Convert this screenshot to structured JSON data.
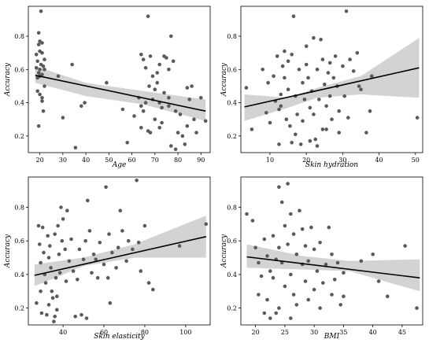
{
  "chart_data": [
    {
      "type": "scatter",
      "xlabel": "Age",
      "ylabel": "Accuracy",
      "xlim": [
        15,
        94
      ],
      "ylim": [
        0.1,
        0.98
      ],
      "xticks": [
        20,
        30,
        40,
        50,
        60,
        70,
        80,
        90
      ],
      "yticks": [
        0.2,
        0.4,
        0.6,
        0.8
      ],
      "grid": false,
      "fit": {
        "x": [
          18,
          92
        ],
        "y": [
          0.565,
          0.35
        ]
      },
      "band": {
        "x": [
          18,
          40,
          65,
          92
        ],
        "lower": [
          0.52,
          0.44,
          0.39,
          0.29
        ],
        "upper": [
          0.62,
          0.52,
          0.47,
          0.42
        ]
      },
      "points": [
        [
          20.5,
          0.95
        ],
        [
          19.5,
          0.82
        ],
        [
          20,
          0.77
        ],
        [
          21,
          0.76
        ],
        [
          19.5,
          0.75
        ],
        [
          20,
          0.71
        ],
        [
          21,
          0.7
        ],
        [
          18.5,
          0.69
        ],
        [
          22,
          0.66
        ],
        [
          19,
          0.65
        ],
        [
          20.5,
          0.63
        ],
        [
          21.5,
          0.62
        ],
        [
          18.5,
          0.61
        ],
        [
          20,
          0.6
        ],
        [
          22,
          0.6
        ],
        [
          19.5,
          0.58
        ],
        [
          21,
          0.57
        ],
        [
          20,
          0.56
        ],
        [
          19,
          0.55
        ],
        [
          28,
          0.56
        ],
        [
          22,
          0.5
        ],
        [
          19,
          0.47
        ],
        [
          20,
          0.45
        ],
        [
          21,
          0.43
        ],
        [
          21,
          0.41
        ],
        [
          21.5,
          0.35
        ],
        [
          19.5,
          0.26
        ],
        [
          30,
          0.31
        ],
        [
          34,
          0.63
        ],
        [
          35.5,
          0.13
        ],
        [
          38,
          0.38
        ],
        [
          39.5,
          0.4
        ],
        [
          49,
          0.52
        ],
        [
          56,
          0.36
        ],
        [
          58,
          0.16
        ],
        [
          64,
          0.69
        ],
        [
          65,
          0.66
        ],
        [
          66,
          0.61
        ],
        [
          68,
          0.68
        ],
        [
          67,
          0.92
        ],
        [
          69,
          0.56
        ],
        [
          72,
          0.63
        ],
        [
          71,
          0.58
        ],
        [
          74,
          0.68
        ],
        [
          75,
          0.67
        ],
        [
          77,
          0.8
        ],
        [
          76,
          0.6
        ],
        [
          78,
          0.65
        ],
        [
          67.5,
          0.5
        ],
        [
          70,
          0.48
        ],
        [
          71,
          0.52
        ],
        [
          74,
          0.46
        ],
        [
          76,
          0.43
        ],
        [
          63,
          0.43
        ],
        [
          64,
          0.38
        ],
        [
          66,
          0.4
        ],
        [
          65,
          0.35
        ],
        [
          69,
          0.42
        ],
        [
          72,
          0.4
        ],
        [
          73,
          0.37
        ],
        [
          76,
          0.38
        ],
        [
          79,
          0.35
        ],
        [
          81,
          0.33
        ],
        [
          84,
          0.49
        ],
        [
          86,
          0.5
        ],
        [
          85,
          0.42
        ],
        [
          90,
          0.43
        ],
        [
          87,
          0.3
        ],
        [
          92,
          0.29
        ],
        [
          88,
          0.22
        ],
        [
          80,
          0.22
        ],
        [
          82,
          0.2
        ],
        [
          84,
          0.26
        ],
        [
          70,
          0.3
        ],
        [
          72,
          0.25
        ],
        [
          67,
          0.23
        ],
        [
          64,
          0.25
        ],
        [
          77,
          0.14
        ],
        [
          79,
          0.12
        ],
        [
          83,
          0.15
        ],
        [
          61,
          0.32
        ],
        [
          73,
          0.28
        ],
        [
          68,
          0.22
        ]
      ]
    },
    {
      "type": "scatter",
      "xlabel": "Skin hydration",
      "ylabel": "Accuracy",
      "xlim": [
        2,
        52
      ],
      "ylim": [
        0.1,
        0.98
      ],
      "xticks": [
        10,
        20,
        30,
        40,
        50
      ],
      "yticks": [
        0.2,
        0.4,
        0.6,
        0.8
      ],
      "grid": false,
      "fit": {
        "x": [
          3,
          51
        ],
        "y": [
          0.375,
          0.61
        ]
      },
      "band": {
        "x": [
          3,
          15,
          23,
          35,
          51
        ],
        "lower": [
          0.29,
          0.37,
          0.43,
          0.45,
          0.43
        ],
        "upper": [
          0.45,
          0.43,
          0.49,
          0.56,
          0.79
        ]
      },
      "points": [
        [
          3.5,
          0.49
        ],
        [
          5,
          0.24
        ],
        [
          8,
          0.6
        ],
        [
          9,
          0.34
        ],
        [
          9.5,
          0.52
        ],
        [
          10,
          0.28
        ],
        [
          11,
          0.56
        ],
        [
          11.5,
          0.41
        ],
        [
          12,
          0.68
        ],
        [
          12.5,
          0.36
        ],
        [
          12.5,
          0.15
        ],
        [
          13,
          0.45
        ],
        [
          13,
          0.38
        ],
        [
          13.5,
          0.62
        ],
        [
          14,
          0.71
        ],
        [
          14,
          0.55
        ],
        [
          14.5,
          0.3
        ],
        [
          15,
          0.65
        ],
        [
          15,
          0.48
        ],
        [
          15.5,
          0.26
        ],
        [
          16,
          0.69
        ],
        [
          16,
          0.16
        ],
        [
          16.5,
          0.92
        ],
        [
          17,
          0.44
        ],
        [
          17.5,
          0.33
        ],
        [
          17,
          0.21
        ],
        [
          18,
          0.6
        ],
        [
          18.5,
          0.15
        ],
        [
          19,
          0.52
        ],
        [
          19.5,
          0.42
        ],
        [
          19,
          0.29
        ],
        [
          20,
          0.74
        ],
        [
          20,
          0.63
        ],
        [
          20.5,
          0.55
        ],
        [
          21,
          0.37
        ],
        [
          21,
          0.17
        ],
        [
          21.5,
          0.47
        ],
        [
          22,
          0.79
        ],
        [
          22,
          0.33
        ],
        [
          22.5,
          0.18
        ],
        [
          23,
          0.6
        ],
        [
          23.5,
          0.42
        ],
        [
          23,
          0.14
        ],
        [
          24,
          0.78
        ],
        [
          24.5,
          0.66
        ],
        [
          24.5,
          0.24
        ],
        [
          25,
          0.51
        ],
        [
          25.5,
          0.38
        ],
        [
          25.5,
          0.24
        ],
        [
          26,
          0.58
        ],
        [
          26.5,
          0.64
        ],
        [
          26.5,
          0.44
        ],
        [
          27,
          0.3
        ],
        [
          27.5,
          0.55
        ],
        [
          28,
          0.68
        ],
        [
          28.5,
          0.5
        ],
        [
          29,
          0.35
        ],
        [
          29,
          0.22
        ],
        [
          30,
          0.62
        ],
        [
          30.5,
          0.44
        ],
        [
          31,
          0.95
        ],
        [
          31.5,
          0.31
        ],
        [
          32,
          0.66
        ],
        [
          33,
          0.59
        ],
        [
          34,
          0.7
        ],
        [
          34.5,
          0.5
        ],
        [
          35,
          0.48
        ],
        [
          36.5,
          0.22
        ],
        [
          37.5,
          0.35
        ],
        [
          38,
          0.56
        ],
        [
          50.5,
          0.31
        ]
      ]
    },
    {
      "type": "scatter",
      "xlabel": "Skin elasticity",
      "ylabel": "Accuracy",
      "xlim": [
        23,
        112
      ],
      "ylim": [
        0.1,
        0.98
      ],
      "xticks": [
        40,
        60,
        80,
        100
      ],
      "yticks": [
        0.2,
        0.4,
        0.6,
        0.8
      ],
      "grid": false,
      "fit": {
        "x": [
          26,
          110
        ],
        "y": [
          0.395,
          0.625
        ]
      },
      "band": {
        "x": [
          26,
          50,
          75,
          110
        ],
        "lower": [
          0.33,
          0.45,
          0.5,
          0.5
        ],
        "upper": [
          0.46,
          0.5,
          0.58,
          0.75
        ]
      },
      "points": [
        [
          27,
          0.23
        ],
        [
          28,
          0.69
        ],
        [
          28.5,
          0.58
        ],
        [
          29,
          0.47
        ],
        [
          29,
          0.3
        ],
        [
          29.5,
          0.17
        ],
        [
          30,
          0.68
        ],
        [
          30.5,
          0.53
        ],
        [
          31,
          0.4
        ],
        [
          31.5,
          0.35
        ],
        [
          32,
          0.16
        ],
        [
          32.5,
          0.63
        ],
        [
          33,
          0.5
        ],
        [
          33,
          0.22
        ],
        [
          33.5,
          0.57
        ],
        [
          34,
          0.44
        ],
        [
          34.5,
          0.3
        ],
        [
          35,
          0.26
        ],
        [
          35.5,
          0.12
        ],
        [
          36,
          0.64
        ],
        [
          36,
          0.15
        ],
        [
          36.5,
          0.38
        ],
        [
          37,
          0.27
        ],
        [
          37,
          0.19
        ],
        [
          37.5,
          0.69
        ],
        [
          38,
          0.52
        ],
        [
          38.5,
          0.41
        ],
        [
          39,
          0.8
        ],
        [
          39.5,
          0.6
        ],
        [
          40,
          0.73
        ],
        [
          41,
          0.55
        ],
        [
          41.5,
          0.36
        ],
        [
          42,
          0.78
        ],
        [
          43,
          0.48
        ],
        [
          44,
          0.61
        ],
        [
          45,
          0.42
        ],
        [
          46,
          0.15
        ],
        [
          47,
          0.37
        ],
        [
          48,
          0.55
        ],
        [
          49,
          0.16
        ],
        [
          50,
          0.49
        ],
        [
          51,
          0.6
        ],
        [
          51.5,
          0.14
        ],
        [
          52,
          0.84
        ],
        [
          53,
          0.66
        ],
        [
          54,
          0.41
        ],
        [
          55,
          0.52
        ],
        [
          56,
          0.49
        ],
        [
          57,
          0.38
        ],
        [
          58,
          0.59
        ],
        [
          60,
          0.46
        ],
        [
          61,
          0.92
        ],
        [
          62,
          0.38
        ],
        [
          62.5,
          0.64
        ],
        [
          63,
          0.23
        ],
        [
          64,
          0.53
        ],
        [
          66,
          0.44
        ],
        [
          67,
          0.56
        ],
        [
          68,
          0.78
        ],
        [
          69,
          0.66
        ],
        [
          71,
          0.48
        ],
        [
          72,
          0.6
        ],
        [
          74,
          0.55
        ],
        [
          76,
          0.96
        ],
        [
          77,
          0.59
        ],
        [
          78,
          0.42
        ],
        [
          80,
          0.69
        ],
        [
          82,
          0.35
        ],
        [
          84,
          0.31
        ],
        [
          97,
          0.57
        ],
        [
          110,
          0.7
        ]
      ]
    },
    {
      "type": "scatter",
      "xlabel": "BMI",
      "ylabel": "Accuracy",
      "xlim": [
        17.5,
        48.5
      ],
      "ylim": [
        0.1,
        0.98
      ],
      "xticks": [
        20,
        25,
        30,
        35,
        40,
        45
      ],
      "yticks": [
        0.2,
        0.4,
        0.6,
        0.8
      ],
      "grid": false,
      "fit": {
        "x": [
          18.5,
          48
        ],
        "y": [
          0.505,
          0.38
        ]
      },
      "band": {
        "x": [
          18.5,
          28,
          36,
          48
        ],
        "lower": [
          0.44,
          0.43,
          0.42,
          0.3
        ],
        "upper": [
          0.58,
          0.51,
          0.48,
          0.49
        ]
      },
      "points": [
        [
          18.5,
          0.76
        ],
        [
          19.5,
          0.72
        ],
        [
          20,
          0.56
        ],
        [
          20.5,
          0.47
        ],
        [
          20.5,
          0.28
        ],
        [
          21,
          0.39
        ],
        [
          21.5,
          0.61
        ],
        [
          21.5,
          0.17
        ],
        [
          22,
          0.25
        ],
        [
          22,
          0.51
        ],
        [
          22.5,
          0.14
        ],
        [
          22.5,
          0.42
        ],
        [
          23,
          0.38
        ],
        [
          23,
          0.63
        ],
        [
          23.5,
          0.49
        ],
        [
          23.5,
          0.17
        ],
        [
          24,
          0.92
        ],
        [
          24,
          0.56
        ],
        [
          24,
          0.2
        ],
        [
          24.5,
          0.83
        ],
        [
          24.5,
          0.47
        ],
        [
          25,
          0.69
        ],
        [
          25,
          0.33
        ],
        [
          25.5,
          0.94
        ],
        [
          25.5,
          0.58
        ],
        [
          26,
          0.76
        ],
        [
          26,
          0.4
        ],
        [
          26,
          0.14
        ],
        [
          26.5,
          0.64
        ],
        [
          26.5,
          0.28
        ],
        [
          27,
          0.52
        ],
        [
          27,
          0.22
        ],
        [
          27.5,
          0.78
        ],
        [
          28,
          0.46
        ],
        [
          28,
          0.67
        ],
        [
          28.5,
          0.36
        ],
        [
          28.5,
          0.57
        ],
        [
          29,
          0.25
        ],
        [
          29,
          0.48
        ],
        [
          29.5,
          0.68
        ],
        [
          30,
          0.31
        ],
        [
          30,
          0.55
        ],
        [
          30.5,
          0.42
        ],
        [
          31,
          0.2
        ],
        [
          31,
          0.59
        ],
        [
          31.5,
          0.35
        ],
        [
          32,
          0.46
        ],
        [
          32.5,
          0.68
        ],
        [
          33,
          0.28
        ],
        [
          33,
          0.52
        ],
        [
          33.5,
          0.37
        ],
        [
          34,
          0.47
        ],
        [
          34.5,
          0.22
        ],
        [
          35,
          0.41
        ],
        [
          35,
          0.27
        ],
        [
          38,
          0.48
        ],
        [
          40,
          0.52
        ],
        [
          41,
          0.36
        ],
        [
          42.5,
          0.27
        ],
        [
          45.5,
          0.57
        ],
        [
          47.5,
          0.2
        ]
      ]
    }
  ]
}
